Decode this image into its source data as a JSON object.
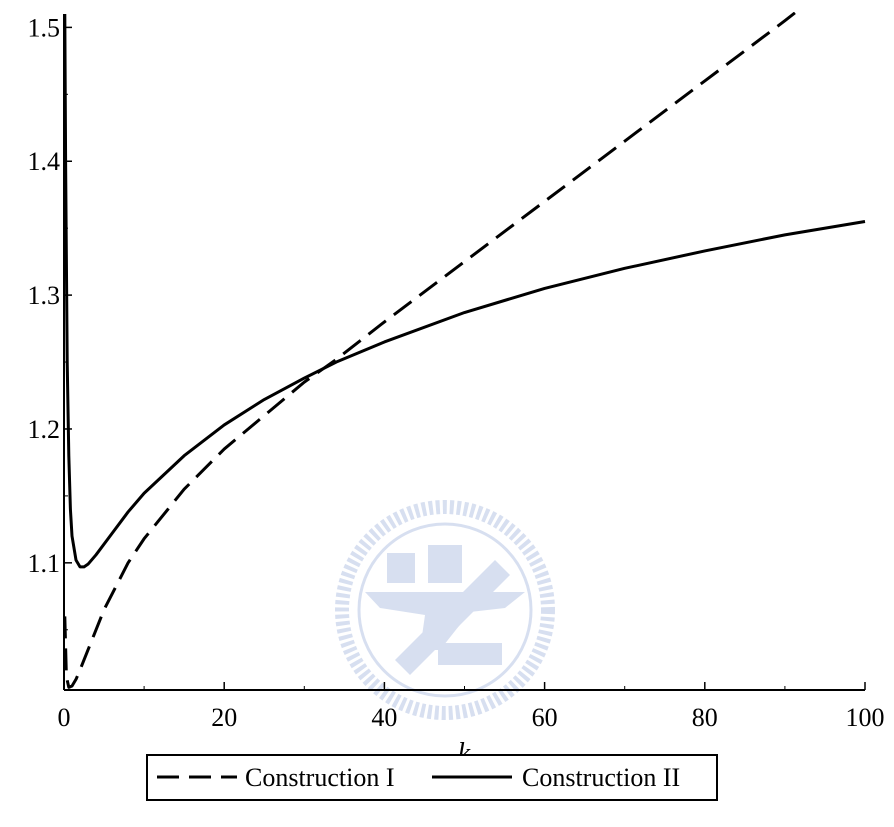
{
  "chart_data": {
    "type": "line",
    "xlabel": "k",
    "ylabel": "",
    "title": "",
    "xlim": [
      0,
      100
    ],
    "ylim": [
      1.005,
      1.51
    ],
    "x_ticks": [
      0,
      20,
      40,
      60,
      80,
      100
    ],
    "y_ticks": [
      1.1,
      1.2,
      1.3,
      1.4,
      1.5
    ],
    "x_tick_labels": [
      "0",
      "20",
      "40",
      "60",
      "80",
      "100"
    ],
    "y_tick_labels": [
      "1.1",
      "1.2",
      "1.3",
      "1.4",
      "1.5"
    ],
    "grid": false,
    "legend_position": "bottom",
    "series": [
      {
        "name": "Construction I",
        "style": "dashed",
        "color": "#000000",
        "x": [
          0.1,
          0.3,
          0.6,
          1,
          1.5,
          2,
          3,
          5,
          8,
          10,
          15,
          20,
          25,
          30,
          34,
          40,
          50,
          60,
          70,
          80,
          90,
          91.5
        ],
        "y": [
          1.06,
          1.015,
          1.007,
          1.008,
          1.013,
          1.02,
          1.035,
          1.065,
          1.1,
          1.118,
          1.155,
          1.185,
          1.21,
          1.235,
          1.252,
          1.28,
          1.325,
          1.37,
          1.415,
          1.46,
          1.505,
          1.512
        ]
      },
      {
        "name": "Construction II",
        "style": "solid",
        "color": "#000000",
        "x": [
          0.1,
          0.2,
          0.4,
          0.6,
          0.8,
          1,
          1.5,
          2,
          2.5,
          3,
          4,
          6,
          8,
          10,
          15,
          20,
          25,
          30,
          34,
          40,
          50,
          60,
          70,
          80,
          90,
          100
        ],
        "y": [
          1.51,
          1.4,
          1.25,
          1.18,
          1.14,
          1.12,
          1.102,
          1.097,
          1.097,
          1.099,
          1.106,
          1.122,
          1.138,
          1.152,
          1.18,
          1.203,
          1.222,
          1.238,
          1.25,
          1.265,
          1.287,
          1.305,
          1.32,
          1.333,
          1.345,
          1.355
        ]
      }
    ]
  },
  "watermark": {
    "text_letters": [
      "E",
      "S",
      "A"
    ],
    "year": "1896",
    "color": "#b8c6e4"
  }
}
